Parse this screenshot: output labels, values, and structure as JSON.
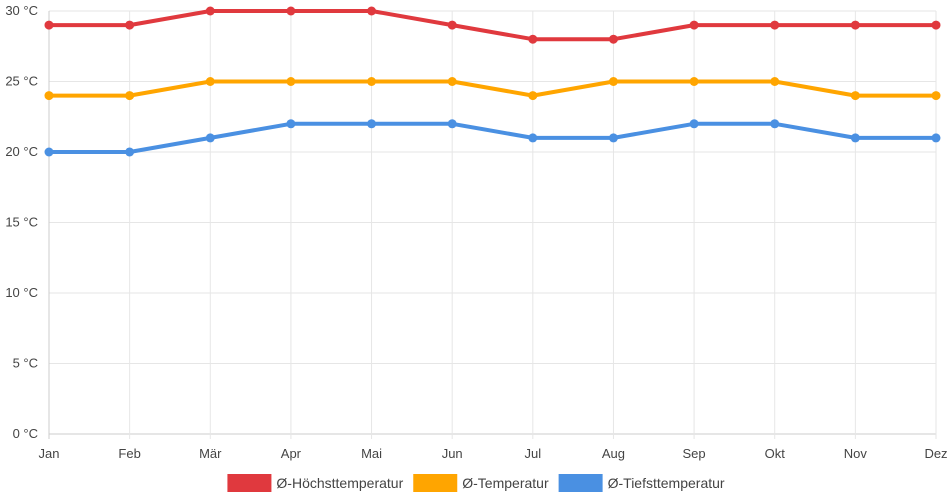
{
  "chart_data": {
    "type": "line",
    "categories": [
      "Jan",
      "Feb",
      "Mär",
      "Apr",
      "Mai",
      "Jun",
      "Jul",
      "Aug",
      "Sep",
      "Okt",
      "Nov",
      "Dez"
    ],
    "yticks": [
      "0 °C",
      "5 °C",
      "10 °C",
      "15 °C",
      "20 °C",
      "25 °C",
      "30 °C"
    ],
    "ylim": [
      0,
      30
    ],
    "grid": true,
    "legend_position": "bottom",
    "series": [
      {
        "name": "Ø-Höchsttemperatur",
        "color": "#e0393e",
        "values": [
          29,
          29,
          30,
          30,
          30,
          29,
          28,
          28,
          29,
          29,
          29,
          29
        ]
      },
      {
        "name": "Ø-Temperatur",
        "color": "#ffa500",
        "values": [
          24,
          24,
          25,
          25,
          25,
          25,
          24,
          25,
          25,
          25,
          24,
          24
        ]
      },
      {
        "name": "Ø-Tiefsttemperatur",
        "color": "#4a90e2",
        "values": [
          20,
          20,
          21,
          22,
          22,
          22,
          21,
          21,
          22,
          22,
          21,
          21
        ]
      }
    ]
  }
}
